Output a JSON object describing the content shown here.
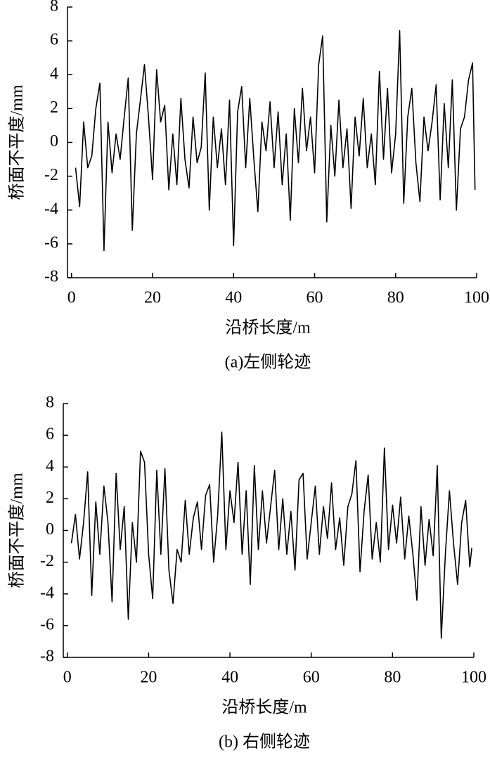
{
  "chart_data": [
    {
      "type": "line",
      "x_label": "沿桥长度/m",
      "y_label": "桥面不平度/mm",
      "caption": "(a)左侧轮迹",
      "xlim": [
        -1,
        100
      ],
      "xticks": [
        0,
        20,
        40,
        60,
        80,
        100
      ],
      "ylim": [
        -8,
        8
      ],
      "yticks": [
        -8,
        -6,
        -4,
        -2,
        0,
        2,
        4,
        6,
        8
      ],
      "color": "#000000",
      "x": [
        1,
        2,
        3,
        4,
        5,
        6,
        7,
        8,
        9,
        10,
        11,
        12,
        13,
        14,
        15,
        16,
        17,
        18,
        19,
        20,
        21,
        22,
        23,
        24,
        25,
        26,
        27,
        28,
        29,
        30,
        31,
        32,
        33,
        34,
        35,
        36,
        37,
        38,
        39,
        40,
        41,
        42,
        43,
        44,
        45,
        46,
        47,
        48,
        49,
        50,
        51,
        52,
        53,
        54,
        55,
        56,
        57,
        58,
        59,
        60,
        61,
        62,
        63,
        64,
        65,
        66,
        67,
        68,
        69,
        70,
        71,
        72,
        73,
        74,
        75,
        76,
        77,
        78,
        79,
        80,
        81,
        82,
        83,
        84,
        85,
        86,
        87,
        88,
        89,
        90,
        91,
        92,
        93,
        94,
        95,
        96,
        97,
        98,
        99,
        99.6
      ],
      "values": [
        -1.5,
        -3.8,
        1.2,
        -1.5,
        -0.8,
        2,
        3.5,
        -6.4,
        1.2,
        -1.8,
        0.5,
        -1,
        1.5,
        3.8,
        -5.2,
        0.5,
        2.5,
        4.6,
        1.5,
        -2.2,
        4.3,
        1.2,
        2.2,
        -2.8,
        0.5,
        -2.5,
        2.6,
        -1,
        -2.7,
        1.5,
        -1.2,
        -0.3,
        4.1,
        -4,
        1.5,
        -1.5,
        0.8,
        -2.5,
        2.5,
        -6.1,
        1.8,
        3.3,
        -1.5,
        2.6,
        -1,
        -4.1,
        1.2,
        -0.5,
        2.4,
        -1.5,
        1.8,
        -2.5,
        0.5,
        -4.6,
        2,
        -1.2,
        3.2,
        -0.5,
        1.5,
        -1.8,
        4.6,
        6.3,
        -4.7,
        1,
        -2,
        2.5,
        -1.5,
        0.8,
        -3.9,
        1.5,
        -0.8,
        2.6,
        -1.5,
        0.5,
        -2.5,
        4.2,
        -1,
        3.2,
        -1.8,
        0.5,
        6.6,
        -3.6,
        1.5,
        3.2,
        -1.2,
        -3.5,
        1.5,
        -0.5,
        1.2,
        3.4,
        -3.4,
        2.3,
        -1.5,
        3.7,
        -4,
        0.8,
        1.5,
        3.7,
        4.7,
        -2.8
      ]
    },
    {
      "type": "line",
      "x_label": "沿桥长度/m",
      "y_label": "桥面不平度/mm",
      "caption": "(b) 右侧轮迹",
      "xlim": [
        -1,
        100
      ],
      "xticks": [
        0,
        20,
        40,
        60,
        80,
        100
      ],
      "ylim": [
        -8,
        8
      ],
      "yticks": [
        -8,
        -6,
        -4,
        -2,
        0,
        2,
        4,
        6,
        8
      ],
      "color": "#000000",
      "x": [
        1,
        2,
        3,
        4,
        5,
        6,
        7,
        8,
        9,
        10,
        11,
        12,
        13,
        14,
        15,
        16,
        17,
        18,
        19,
        20,
        21,
        22,
        23,
        24,
        25,
        26,
        27,
        28,
        29,
        30,
        31,
        32,
        33,
        34,
        35,
        36,
        37,
        38,
        39,
        40,
        41,
        42,
        43,
        44,
        45,
        46,
        47,
        48,
        49,
        50,
        51,
        52,
        53,
        54,
        55,
        56,
        57,
        58,
        59,
        60,
        61,
        62,
        63,
        64,
        65,
        66,
        67,
        68,
        69,
        70,
        71,
        72,
        73,
        74,
        75,
        76,
        77,
        78,
        79,
        80,
        81,
        82,
        83,
        84,
        85,
        86,
        87,
        88,
        89,
        90,
        91,
        92,
        93,
        94,
        95,
        96,
        97,
        98,
        99,
        99.5
      ],
      "values": [
        -0.8,
        1,
        -1.8,
        0.5,
        3.7,
        -4.1,
        1.8,
        -1.5,
        2.8,
        0.5,
        -4.5,
        3.6,
        -1.2,
        1.5,
        -5.6,
        0.5,
        -2,
        5,
        4.3,
        -1.5,
        -4.3,
        3.8,
        -1.5,
        3.9,
        -2.5,
        -4.6,
        -1.2,
        -2,
        1.9,
        -1.5,
        0.8,
        1.8,
        -1.2,
        2.2,
        2.9,
        -2,
        1,
        6.2,
        -1.2,
        2.5,
        0.5,
        4.3,
        -1.5,
        2.5,
        -3.4,
        4.1,
        -1.2,
        2.5,
        -0.8,
        1.5,
        3.8,
        -1.2,
        2,
        -1.5,
        1.2,
        -2.5,
        3.2,
        3.6,
        -1.8,
        0.5,
        2.8,
        -1.5,
        1.5,
        -0.5,
        3,
        -1.2,
        0.8,
        -2.2,
        1.5,
        2.3,
        4.4,
        -2.6,
        1.2,
        3.5,
        -1.8,
        0.5,
        -2,
        5.2,
        -1.2,
        1.6,
        -0.8,
        2.1,
        -1.8,
        0.9,
        -1.5,
        -4.4,
        1.5,
        -2.2,
        0.7,
        -1.6,
        4.1,
        -6.8,
        -1.5,
        2.5,
        -0.8,
        -3.4,
        0.5,
        1.9,
        -2.3,
        -1.1
      ]
    }
  ]
}
